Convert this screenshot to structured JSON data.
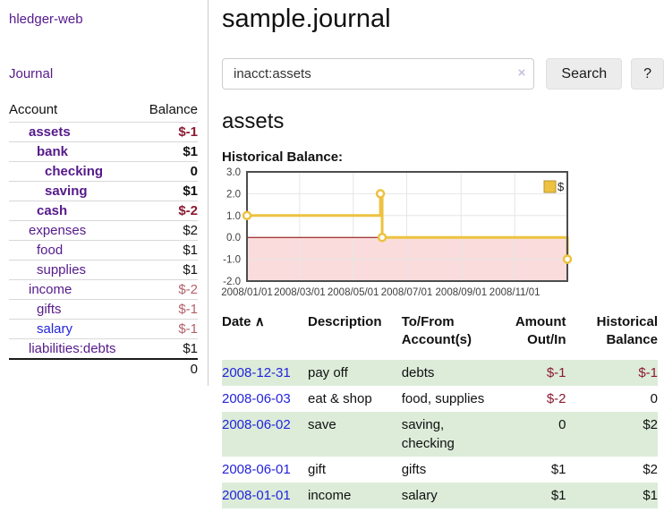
{
  "app": {
    "title": "hledger-web"
  },
  "sidebar": {
    "journal_link": "Journal",
    "accounts_table": {
      "headers": {
        "account": "Account",
        "balance": "Balance"
      },
      "rows": [
        {
          "account": "assets",
          "depth": 1,
          "bold": true,
          "balance": "$-1",
          "neg": "strong"
        },
        {
          "account": "bank",
          "depth": 2,
          "bold": true,
          "balance": "$1",
          "neg": null
        },
        {
          "account": "checking",
          "depth": 3,
          "bold": true,
          "balance": "0",
          "neg": null
        },
        {
          "account": "saving",
          "depth": 3,
          "bold": true,
          "balance": "$1",
          "neg": null
        },
        {
          "account": "cash",
          "depth": 2,
          "bold": true,
          "balance": "$-2",
          "neg": "strong"
        },
        {
          "account": "expenses",
          "depth": 1,
          "bold": false,
          "balance": "$2",
          "neg": null
        },
        {
          "account": "food",
          "depth": 2,
          "bold": false,
          "balance": "$1",
          "neg": null
        },
        {
          "account": "supplies",
          "depth": 2,
          "bold": false,
          "balance": "$1",
          "neg": null
        },
        {
          "account": "income",
          "depth": 1,
          "bold": false,
          "balance": "$-2",
          "neg": "muted"
        },
        {
          "account": "gifts",
          "depth": 2,
          "bold": false,
          "balance": "$-1",
          "neg": "muted"
        },
        {
          "account": "salary",
          "depth": 2,
          "bold": false,
          "balance": "$-1",
          "neg": "muted",
          "blue": true
        },
        {
          "account": "liabilities:debts",
          "depth": 1,
          "bold": false,
          "balance": "$1",
          "neg": null
        }
      ],
      "total": "0"
    }
  },
  "header": {
    "title": "sample.journal"
  },
  "search": {
    "value": "inacct:assets",
    "clear_icon": "×",
    "button_label": "Search",
    "help_label": "?"
  },
  "account_page": {
    "heading": "assets",
    "chart_label": "Historical Balance:"
  },
  "chart_data": {
    "type": "line",
    "step": true,
    "title": "Historical Balance",
    "series": [
      {
        "name": "$",
        "color": "#edc240",
        "points": [
          [
            "2008-01-01",
            1
          ],
          [
            "2008-06-01",
            2
          ],
          [
            "2008-06-03",
            0
          ],
          [
            "2008-12-31",
            -1
          ]
        ]
      }
    ],
    "x_range": [
      "2008-01-01",
      "2008-12-31"
    ],
    "x_ticks": [
      "2008/01/01",
      "2008/03/01",
      "2008/05/01",
      "2008/07/01",
      "2008/09/01",
      "2008/11/01"
    ],
    "y_ticks": [
      3.0,
      2.0,
      1.0,
      0.0,
      -1.0,
      -2.0
    ],
    "ylim": [
      -2,
      3
    ],
    "grid": true,
    "legend": {
      "label": "$",
      "position": "top-right"
    },
    "negative_region_color": "#fadcdc",
    "zero_line_color": "#8b0000",
    "border_color": "#4d4d4d",
    "grid_color": "#e6e6e6",
    "marker_fill": "#ffffff",
    "legend_swatch_border": "#b9952f"
  },
  "register_table": {
    "headers": {
      "date": "Date",
      "sort_icon": "∧",
      "description": "Description",
      "accounts": "To/From\nAccount(s)",
      "amount": "Amount\nOut/In",
      "balance": "Historical\nBalance"
    },
    "rows": [
      {
        "date": "2008-12-31",
        "description": "pay off",
        "accounts": "debts",
        "amount": "$-1",
        "amount_neg": true,
        "balance": "$-1",
        "balance_neg": true,
        "shaded": true
      },
      {
        "date": "2008-06-03",
        "description": "eat & shop",
        "accounts": "food, supplies",
        "amount": "$-2",
        "amount_neg": true,
        "balance": "0",
        "balance_neg": false,
        "shaded": false
      },
      {
        "date": "2008-06-02",
        "description": "save",
        "accounts": "saving,\nchecking",
        "amount": "0",
        "amount_neg": false,
        "balance": "$2",
        "balance_neg": false,
        "shaded": true
      },
      {
        "date": "2008-06-01",
        "description": "gift",
        "accounts": "gifts",
        "amount": "$1",
        "amount_neg": false,
        "balance": "$2",
        "balance_neg": false,
        "shaded": false
      },
      {
        "date": "2008-01-01",
        "description": "income",
        "accounts": "salary",
        "amount": "$1",
        "amount_neg": false,
        "balance": "$1",
        "balance_neg": false,
        "shaded": true
      }
    ]
  }
}
